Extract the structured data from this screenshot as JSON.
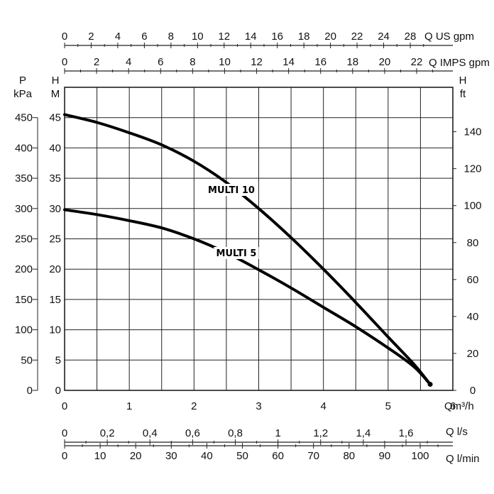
{
  "chart_data": {
    "type": "line",
    "x_unit_label": "Qm³/h",
    "x_ticks": [
      "0",
      "1",
      "2",
      "3",
      "4",
      "5",
      "6"
    ],
    "xlim": [
      0,
      6
    ],
    "ylim": [
      0,
      50
    ],
    "left_pressure_unit": [
      "P",
      "kPa"
    ],
    "left_pressure_ticks": [
      "0",
      "50",
      "100",
      "150",
      "200",
      "250",
      "300",
      "350",
      "400",
      "450"
    ],
    "left_head_unit": [
      "H",
      "M"
    ],
    "left_head_ticks": [
      "0",
      "5",
      "10",
      "15",
      "20",
      "25",
      "30",
      "35",
      "40",
      "45"
    ],
    "right_head_unit": [
      "H",
      "ft"
    ],
    "right_head_ticks": [
      "0",
      "20",
      "40",
      "60",
      "80",
      "100",
      "120",
      "140"
    ],
    "top_axes": [
      {
        "label": "Q US gpm",
        "ticks": [
          "0",
          "2",
          "4",
          "6",
          "8",
          "10",
          "12",
          "14",
          "16",
          "18",
          "20",
          "22",
          "24",
          "28"
        ]
      },
      {
        "label": "Q IMPS gpm",
        "ticks": [
          "0",
          "2",
          "4",
          "6",
          "8",
          "10",
          "12",
          "14",
          "16",
          "18",
          "20",
          "22"
        ]
      }
    ],
    "bottom_axes": [
      {
        "label": "Q l/s",
        "ticks": [
          "0",
          "0,2",
          "0,4",
          "0,6",
          "0,8",
          "1",
          "1,2",
          "1,4",
          "1,6"
        ]
      },
      {
        "label": "Q l/min",
        "ticks": [
          "0",
          "10",
          "20",
          "30",
          "40",
          "50",
          "60",
          "70",
          "80",
          "90",
          "100"
        ]
      }
    ],
    "grid": true,
    "series": [
      {
        "name": "MULTI 10",
        "x": [
          0,
          0.5,
          1,
          1.5,
          2,
          2.5,
          3,
          3.5,
          4,
          4.5,
          5,
          5.4,
          5.65
        ],
        "y": [
          45.5,
          44.2,
          42.5,
          40.5,
          37.8,
          34.3,
          30.0,
          25.2,
          20.0,
          14.5,
          8.8,
          4.3,
          1.0
        ]
      },
      {
        "name": "MULTI 5",
        "x": [
          0,
          0.5,
          1,
          1.5,
          2,
          2.5,
          3,
          3.5,
          4,
          4.5,
          5,
          5.4,
          5.65
        ],
        "y": [
          29.8,
          29.0,
          28.0,
          26.8,
          25.0,
          22.7,
          19.9,
          16.9,
          13.7,
          10.5,
          7.0,
          3.9,
          1.0
        ]
      }
    ]
  }
}
